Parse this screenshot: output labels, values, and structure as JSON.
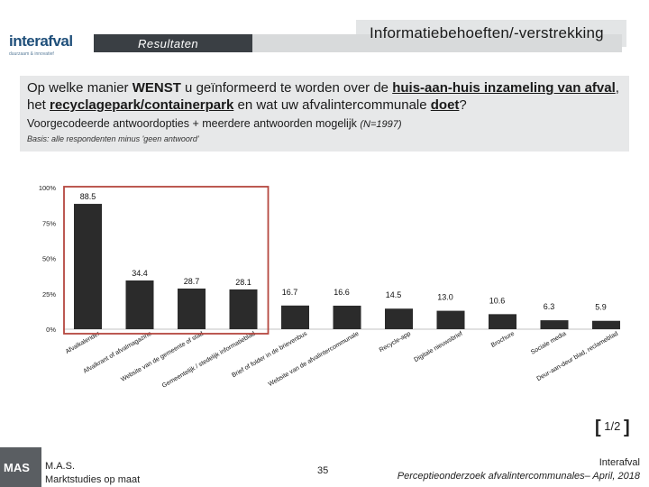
{
  "header": {
    "logo_text": "interafval",
    "logo_tagline": "duurzaam & innovatief",
    "section_label": "Resultaten",
    "title": "Informatiebehoeften/-verstrekking"
  },
  "question": {
    "p1": "Op welke manier ",
    "p2": "WENST",
    "p3": " u geïnformeerd te worden over de ",
    "p4": "huis-aan-huis inzameling van afval",
    "p5": ", het ",
    "p6": "recyclagepark/containerpark",
    "p7": " en wat uw afvalintercommunale ",
    "p8": "doet",
    "p9": "?",
    "subline": "Voorgecodeerde antwoordopties + meerdere antwoorden mogelijk ",
    "n_label": "(N=1997)",
    "basis": "Basis: alle respondenten minus 'geen antwoord'"
  },
  "chart_data": {
    "type": "bar",
    "categories": [
      "Afvalkalender",
      "Afvalkrant of afvalmagazine",
      "Website van de gemeente of stad",
      "Gemeentelijk / stedelijk informatieblad",
      "Brief of folder in de brievenbus",
      "Website van de afvalintercommunale",
      "Recycle-app",
      "Digitale nieuwsbrief",
      "Brochure",
      "Sociale media",
      "Deur-aan-deur blad, reclameblad"
    ],
    "values": [
      88.5,
      34.4,
      28.7,
      28.1,
      16.7,
      16.6,
      14.5,
      13.0,
      10.6,
      6.3,
      5.9
    ],
    "value_labels": [
      "88.5",
      "34.4",
      "28.7",
      "28.1",
      "16.7",
      "16.6",
      "14.5",
      "13.0",
      "10.6",
      "6.3",
      "5.9"
    ],
    "y_ticks": [
      "0%",
      "25%",
      "50%",
      "75%",
      "100%"
    ],
    "ylim": [
      0,
      100
    ],
    "highlight_range": [
      0,
      3
    ],
    "bar_color": "#2b2b2b",
    "highlight_color": "#b5473f"
  },
  "page_indicator": "1/2",
  "footer": {
    "logo_text": "MAS",
    "org_line1": "M.A.S.",
    "org_line2": "Marktstudies op maat",
    "page_number": "35",
    "client": "Interafval",
    "report": "Perceptieonderzoek afvalintercommunales– April, 2018"
  }
}
